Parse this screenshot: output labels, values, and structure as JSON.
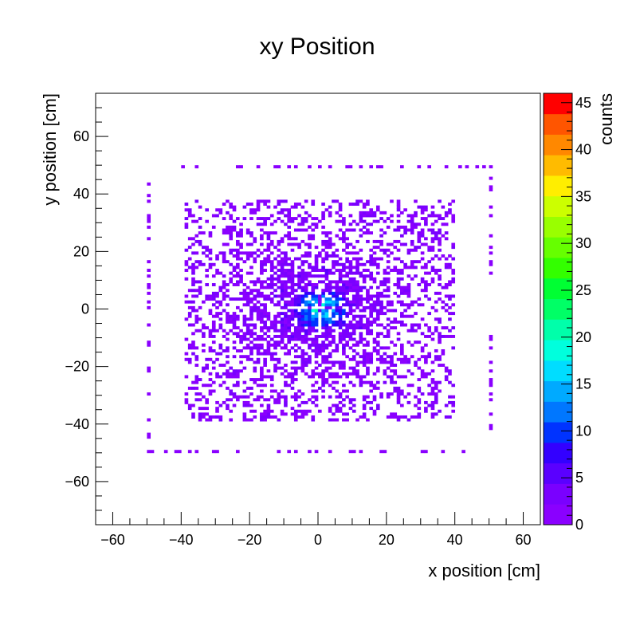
{
  "chart_data": {
    "type": "heatmap",
    "title": "xy Position",
    "xlabel": "x position [cm]",
    "ylabel": "y position [cm]",
    "zlabel": "counts",
    "xlim": [
      -65,
      65
    ],
    "ylim": [
      -75,
      75
    ],
    "zlim": [
      0,
      46
    ],
    "x_ticks": [
      -60,
      -40,
      -20,
      0,
      20,
      40,
      60
    ],
    "y_ticks": [
      -60,
      -40,
      -20,
      0,
      20,
      40,
      60
    ],
    "z_ticks": [
      0,
      5,
      10,
      15,
      20,
      25,
      30,
      35,
      40,
      45
    ],
    "x_tick_labels": [
      "−60",
      "−40",
      "−20",
      "0",
      "20",
      "40",
      "60"
    ],
    "y_tick_labels": [
      "−60",
      "−40",
      "−20",
      "0",
      "20",
      "40",
      "60"
    ],
    "z_tick_labels": [
      "0",
      "5",
      "10",
      "15",
      "20",
      "25",
      "30",
      "35",
      "40",
      "45"
    ],
    "bin_width_cm": 1,
    "distribution": {
      "main_region": {
        "x": [
          -39,
          40
        ],
        "y": [
          -39,
          38
        ],
        "typical_counts": [
          1,
          4
        ]
      },
      "central_peak": {
        "x": [
          -7,
          8
        ],
        "y": [
          -6,
          5
        ],
        "peak_counts": 22
      },
      "outer_frame": {
        "x": [
          -50,
          50
        ],
        "y": [
          -50,
          50
        ],
        "typical_counts": 1
      }
    },
    "palette": [
      "#8a00ff",
      "#7a00ff",
      "#5a00ff",
      "#3300ff",
      "#0033ff",
      "#0077ff",
      "#00aaff",
      "#00ddff",
      "#00ffdd",
      "#00ffaa",
      "#00ff66",
      "#00ff33",
      "#33ff00",
      "#66ff00",
      "#99ff00",
      "#ccff00",
      "#ffee00",
      "#ffbb00",
      "#ff8800",
      "#ff5500",
      "#ff0000"
    ],
    "grid": false
  }
}
